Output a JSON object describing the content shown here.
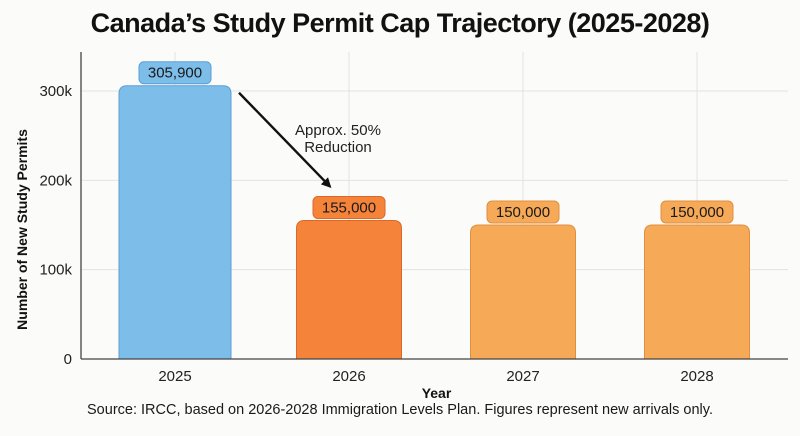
{
  "chart_data": {
    "type": "bar",
    "title": "Canada’s Study Permit Cap Trajectory (2025-2028)",
    "xlabel": "Year",
    "ylabel": "Number of New Study Permits",
    "categories": [
      "2025",
      "2026",
      "2027",
      "2028"
    ],
    "values": [
      305900,
      155000,
      150000,
      150000
    ],
    "value_labels": [
      "305,900",
      "155,000",
      "150,000",
      "150,000"
    ],
    "bar_colors": [
      "#7dbde9",
      "#f5843a",
      "#f6a957",
      "#f6a957"
    ],
    "label_box_colors": [
      "#7dbde9",
      "#f5843a",
      "#f6a957",
      "#f6a957"
    ],
    "border_colors": [
      "#5a9fd4",
      "#d9692a",
      "#e08f3e",
      "#e08f3e"
    ],
    "yticks": [
      0,
      100000,
      200000,
      300000
    ],
    "ytick_labels": [
      "0",
      "100k",
      "200k",
      "300k"
    ],
    "ylim": [
      0,
      330000
    ],
    "grid": true,
    "annotation": {
      "text_lines": [
        "Approx. 50%",
        "Reduction"
      ],
      "arrow_from_category": "2025",
      "arrow_to_category": "2026"
    },
    "source_note": "Source: IRCC, based on 2026-2028 Immigration Levels Plan. Figures represent new arrivals only."
  }
}
